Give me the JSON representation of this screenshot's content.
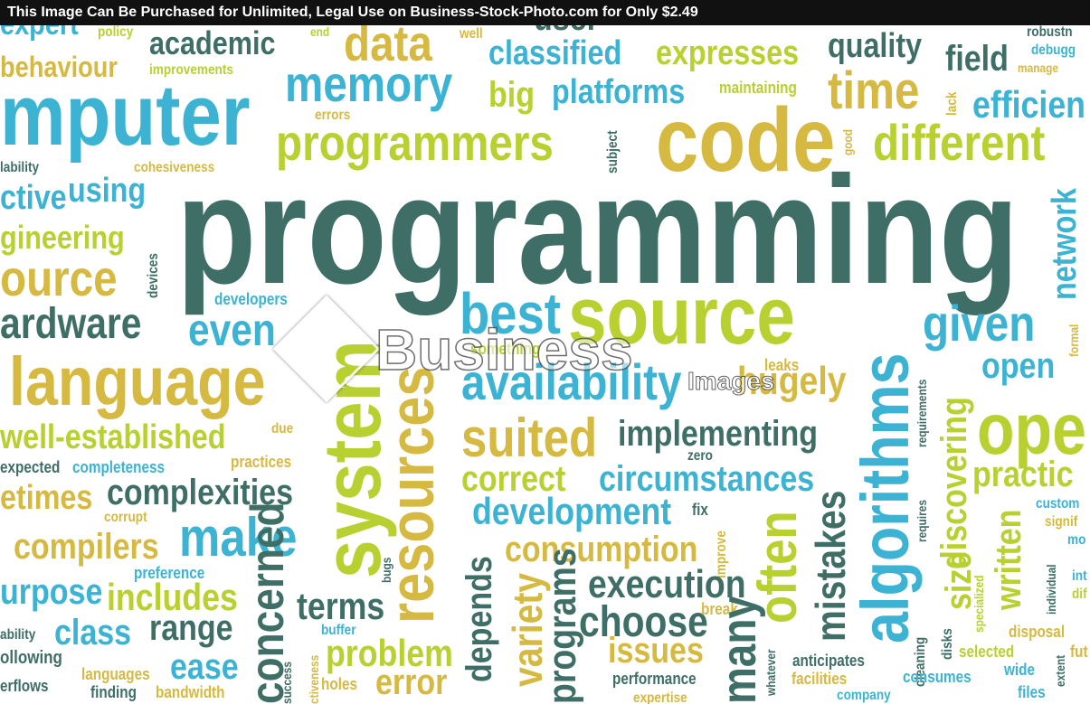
{
  "banner": "This Image Can Be Purchased for Unlimited, Legal Use on Business-Stock-Photo.com for Only $2.49",
  "watermark": {
    "brand": "Business",
    "suffix": "Images"
  },
  "words": [
    "expert",
    "policy",
    "academic",
    "end",
    "data",
    "well",
    "user",
    "classified",
    "expresses",
    "quality",
    "robustn",
    "debugg",
    "manage",
    "field",
    "behaviour",
    "improvements",
    "memory",
    "big",
    "platforms",
    "maintaining",
    "time",
    "lack",
    "efficien",
    "mputer",
    "errors",
    "code",
    "subject",
    "good",
    "programmers",
    "different",
    "lability",
    "cohesiveness",
    "using",
    "ctive",
    "programming",
    "network",
    "gineering",
    "devices",
    "ource",
    "developers",
    "ardware",
    "even",
    "best",
    "source",
    "algorithms",
    "given",
    "formal",
    "system",
    "resources",
    "something",
    "availability",
    "leaks",
    "hugely",
    "open",
    "language",
    "requirements",
    "due",
    "suited",
    "implementing",
    "discovering",
    "ope",
    "well-established",
    "expected",
    "completeness",
    "practices",
    "zero",
    "correct",
    "circumstances",
    "practic",
    "etimes",
    "complexities",
    "development",
    "fix",
    "often",
    "mistakes",
    "requires",
    "size",
    "written",
    "custom",
    "signif",
    "make",
    "corrupt",
    "compilers",
    "consumption",
    "improve",
    "mo",
    "preference",
    "bugs",
    "urpose",
    "includes",
    "concerned",
    "depends",
    "variety",
    "programs",
    "execution",
    "terms",
    "choose",
    "break",
    "many",
    "specialized",
    "individual",
    "int",
    "dif",
    "disposal",
    "ability",
    "class",
    "range",
    "buffer",
    "problem",
    "issues",
    "whatever",
    "cleaning",
    "disks",
    "selected",
    "wide",
    "extent",
    "fut",
    "anticipates",
    "ollowing",
    "ease",
    "languages",
    "holes",
    "error",
    "performance",
    "facilities",
    "consumes",
    "files",
    "erflows",
    "finding",
    "bandwidth",
    "success",
    "ctiveness",
    "expertise",
    "company"
  ]
}
